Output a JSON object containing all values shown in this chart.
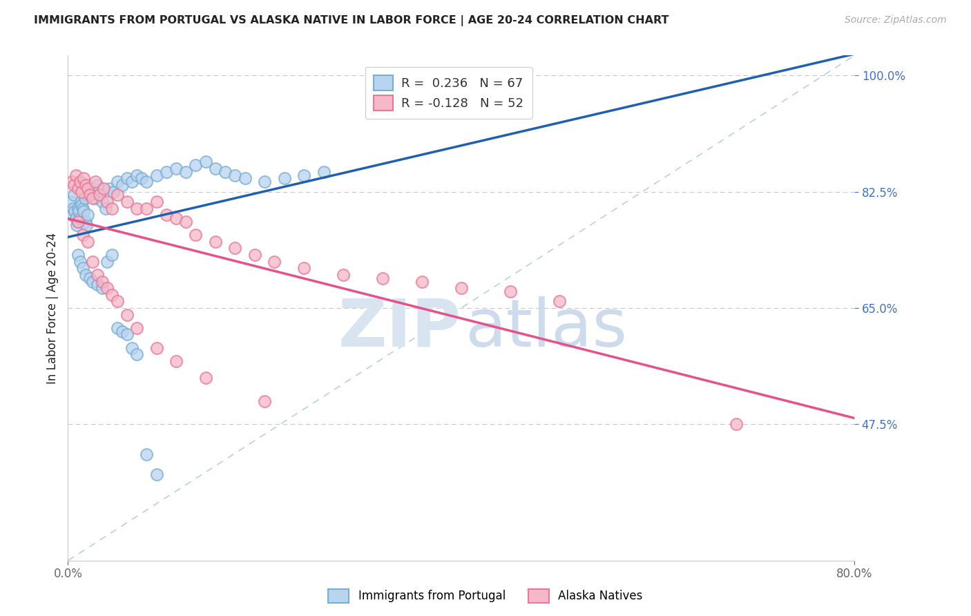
{
  "title": "IMMIGRANTS FROM PORTUGAL VS ALASKA NATIVE IN LABOR FORCE | AGE 20-24 CORRELATION CHART",
  "source": "Source: ZipAtlas.com",
  "ylabel": "In Labor Force | Age 20-24",
  "xlim": [
    0.0,
    0.8
  ],
  "ylim": [
    0.27,
    1.03
  ],
  "xtick_vals": [
    0.0,
    0.8
  ],
  "xticklabels": [
    "0.0%",
    "80.0%"
  ],
  "ytick_vals": [
    1.0,
    0.825,
    0.65,
    0.475
  ],
  "yticklabels": [
    "100.0%",
    "82.5%",
    "65.0%",
    "47.5%"
  ],
  "legend_labels": [
    "Immigrants from Portugal",
    "Alaska Natives"
  ],
  "blue_R": "0.236",
  "blue_N": "67",
  "pink_R": "-0.128",
  "pink_N": "52",
  "blue_face": "#b8d4ee",
  "blue_edge": "#7aadd4",
  "pink_face": "#f5b8c8",
  "pink_edge": "#e87898",
  "blue_line_color": "#2060b0",
  "pink_line_color": "#e8508a",
  "dash_color": "#a8c4e0",
  "grid_color": "#c8c8cc",
  "title_color": "#222222",
  "source_color": "#aaaaaa",
  "ytick_color": "#4472c4",
  "xtick_color": "#666666",
  "legend_R_color": "#4472c4",
  "legend_N_color": "#4472c4",
  "blue_x": [
    0.003,
    0.004,
    0.005,
    0.006,
    0.007,
    0.008,
    0.009,
    0.01,
    0.01,
    0.011,
    0.012,
    0.013,
    0.014,
    0.015,
    0.016,
    0.017,
    0.018,
    0.019,
    0.02,
    0.022,
    0.024,
    0.026,
    0.028,
    0.03,
    0.032,
    0.035,
    0.038,
    0.042,
    0.046,
    0.05,
    0.055,
    0.06,
    0.065,
    0.07,
    0.075,
    0.08,
    0.09,
    0.1,
    0.11,
    0.12,
    0.13,
    0.14,
    0.15,
    0.16,
    0.17,
    0.18,
    0.2,
    0.22,
    0.24,
    0.26,
    0.01,
    0.012,
    0.015,
    0.018,
    0.022,
    0.025,
    0.03,
    0.035,
    0.04,
    0.045,
    0.05,
    0.055,
    0.06,
    0.065,
    0.07,
    0.08,
    0.09
  ],
  "blue_y": [
    0.81,
    0.79,
    0.8,
    0.82,
    0.795,
    0.785,
    0.775,
    0.8,
    0.78,
    0.795,
    0.785,
    0.81,
    0.805,
    0.8,
    0.795,
    0.815,
    0.78,
    0.775,
    0.79,
    0.82,
    0.83,
    0.825,
    0.815,
    0.835,
    0.82,
    0.81,
    0.8,
    0.83,
    0.825,
    0.84,
    0.835,
    0.845,
    0.84,
    0.85,
    0.845,
    0.84,
    0.85,
    0.855,
    0.86,
    0.855,
    0.865,
    0.87,
    0.86,
    0.855,
    0.85,
    0.845,
    0.84,
    0.845,
    0.85,
    0.855,
    0.73,
    0.72,
    0.71,
    0.7,
    0.695,
    0.69,
    0.685,
    0.68,
    0.72,
    0.73,
    0.62,
    0.615,
    0.61,
    0.59,
    0.58,
    0.43,
    0.4
  ],
  "pink_x": [
    0.004,
    0.006,
    0.008,
    0.01,
    0.012,
    0.014,
    0.016,
    0.018,
    0.02,
    0.022,
    0.025,
    0.028,
    0.032,
    0.036,
    0.04,
    0.045,
    0.05,
    0.06,
    0.07,
    0.08,
    0.09,
    0.1,
    0.11,
    0.12,
    0.13,
    0.15,
    0.17,
    0.19,
    0.21,
    0.24,
    0.28,
    0.32,
    0.36,
    0.4,
    0.45,
    0.5,
    0.01,
    0.015,
    0.02,
    0.025,
    0.03,
    0.035,
    0.04,
    0.045,
    0.05,
    0.06,
    0.07,
    0.09,
    0.11,
    0.14,
    0.2,
    0.68
  ],
  "pink_y": [
    0.84,
    0.835,
    0.85,
    0.83,
    0.84,
    0.825,
    0.845,
    0.835,
    0.83,
    0.82,
    0.815,
    0.84,
    0.82,
    0.83,
    0.81,
    0.8,
    0.82,
    0.81,
    0.8,
    0.8,
    0.81,
    0.79,
    0.785,
    0.78,
    0.76,
    0.75,
    0.74,
    0.73,
    0.72,
    0.71,
    0.7,
    0.695,
    0.69,
    0.68,
    0.675,
    0.66,
    0.78,
    0.76,
    0.75,
    0.72,
    0.7,
    0.69,
    0.68,
    0.67,
    0.66,
    0.64,
    0.62,
    0.59,
    0.57,
    0.545,
    0.51,
    0.475
  ]
}
